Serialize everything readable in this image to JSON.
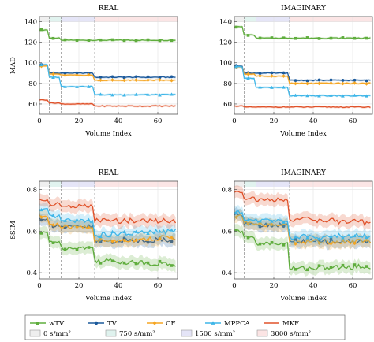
{
  "figure": {
    "xlabel": "Volume Index",
    "legend_methods": [
      "wTV",
      "TV",
      "CF",
      "MPPCA",
      "MKF"
    ],
    "legend_bands": [
      "0 s/mm²",
      "750 s/mm²",
      "1500 s/mm²",
      "3000 s/mm²"
    ],
    "colors": {
      "wTV": "#5fad3d",
      "TV": "#1c5a9c",
      "CF": "#f5a623",
      "MPPCA": "#3fb6e8",
      "MKF": "#e0522a",
      "band_0": "#eeeeee",
      "band_750": "#dff2ee",
      "band_1500": "#e4e4f7",
      "band_3000": "#fbe4e4"
    }
  },
  "chart_data": [
    {
      "type": "line",
      "title": "REAL",
      "ylabel": "MAD",
      "xlabel": "Volume Index",
      "xlim": [
        0,
        70
      ],
      "ylim": [
        50,
        145
      ],
      "xticks": [
        0,
        20,
        40,
        60
      ],
      "yticks": [
        60,
        80,
        100,
        120,
        140
      ],
      "grid": true,
      "shaded_bands": [
        [
          0,
          5,
          "0"
        ],
        [
          5,
          11,
          "750"
        ],
        [
          11,
          28,
          "1500"
        ],
        [
          28,
          70,
          "3000"
        ]
      ],
      "dashed_lines": [
        5,
        11,
        28
      ],
      "x": [
        0,
        5,
        11,
        28,
        69
      ],
      "series": [
        {
          "name": "wTV",
          "values": [
            132,
            124,
            122,
            122,
            122
          ]
        },
        {
          "name": "TV",
          "values": [
            98,
            90,
            90,
            86,
            86
          ]
        },
        {
          "name": "CF",
          "values": [
            97,
            89,
            88,
            83,
            83
          ]
        },
        {
          "name": "MPPCA",
          "values": [
            98,
            86,
            77,
            69,
            69
          ]
        },
        {
          "name": "MKF",
          "values": [
            64,
            61,
            60,
            58,
            58
          ]
        }
      ]
    },
    {
      "type": "line",
      "title": "IMAGINARY",
      "ylabel": "",
      "xlabel": "Volume Index",
      "xlim": [
        0,
        70
      ],
      "ylim": [
        50,
        145
      ],
      "xticks": [
        0,
        20,
        40,
        60
      ],
      "yticks": [
        60,
        80,
        100,
        120,
        140
      ],
      "grid": true,
      "shaded_bands": [
        [
          0,
          5,
          "0"
        ],
        [
          5,
          11,
          "750"
        ],
        [
          11,
          28,
          "1500"
        ],
        [
          28,
          70,
          "3000"
        ]
      ],
      "dashed_lines": [
        5,
        11,
        28
      ],
      "x": [
        0,
        5,
        11,
        28,
        69
      ],
      "series": [
        {
          "name": "wTV",
          "values": [
            135,
            127,
            124,
            124,
            124
          ]
        },
        {
          "name": "TV",
          "values": [
            97,
            90,
            90,
            83,
            83
          ]
        },
        {
          "name": "CF",
          "values": [
            96,
            89,
            87,
            80,
            80
          ]
        },
        {
          "name": "MPPCA",
          "values": [
            96,
            85,
            76,
            68,
            68
          ]
        },
        {
          "name": "MKF",
          "values": [
            58,
            57,
            57,
            57,
            57
          ]
        }
      ]
    },
    {
      "type": "line",
      "title": "REAL",
      "ylabel": "SSIM",
      "xlabel": "Volume Index",
      "xlim": [
        0,
        70
      ],
      "ylim": [
        0.37,
        0.84
      ],
      "xticks": [
        0,
        20,
        40,
        60
      ],
      "yticks": [
        0.4,
        0.6,
        0.8
      ],
      "grid": true,
      "shaded_bands": [
        [
          0,
          5,
          "0"
        ],
        [
          5,
          11,
          "750"
        ],
        [
          11,
          28,
          "1500"
        ],
        [
          28,
          70,
          "3000"
        ]
      ],
      "dashed_lines": [
        5,
        11,
        28
      ],
      "x": [
        0,
        5,
        11,
        28,
        69
      ],
      "series": [
        {
          "name": "wTV",
          "values": [
            0.59,
            0.55,
            0.52,
            0.46,
            0.44
          ]
        },
        {
          "name": "TV",
          "values": [
            0.66,
            0.63,
            0.62,
            0.55,
            0.56
          ]
        },
        {
          "name": "CF",
          "values": [
            0.67,
            0.63,
            0.62,
            0.55,
            0.57
          ]
        },
        {
          "name": "MPPCA",
          "values": [
            0.7,
            0.67,
            0.65,
            0.58,
            0.6
          ]
        },
        {
          "name": "MKF",
          "values": [
            0.75,
            0.73,
            0.72,
            0.65,
            0.65
          ]
        }
      ]
    },
    {
      "type": "line",
      "title": "IMAGINARY",
      "ylabel": "",
      "xlabel": "Volume Index",
      "xlim": [
        0,
        70
      ],
      "ylim": [
        0.37,
        0.84
      ],
      "xticks": [
        0,
        20,
        40,
        60
      ],
      "yticks": [
        0.4,
        0.6,
        0.8
      ],
      "grid": true,
      "shaded_bands": [
        [
          0,
          5,
          "0"
        ],
        [
          5,
          11,
          "750"
        ],
        [
          11,
          28,
          "1500"
        ],
        [
          28,
          70,
          "3000"
        ]
      ],
      "dashed_lines": [
        5,
        11,
        28
      ],
      "x": [
        0,
        5,
        11,
        28,
        69
      ],
      "series": [
        {
          "name": "wTV",
          "values": [
            0.6,
            0.57,
            0.54,
            0.42,
            0.43
          ]
        },
        {
          "name": "TV",
          "values": [
            0.68,
            0.64,
            0.63,
            0.55,
            0.55
          ]
        },
        {
          "name": "CF",
          "values": [
            0.67,
            0.64,
            0.63,
            0.55,
            0.55
          ]
        },
        {
          "name": "MPPCA",
          "values": [
            0.69,
            0.66,
            0.65,
            0.57,
            0.58
          ]
        },
        {
          "name": "MKF",
          "values": [
            0.79,
            0.76,
            0.75,
            0.66,
            0.64
          ]
        }
      ]
    }
  ]
}
